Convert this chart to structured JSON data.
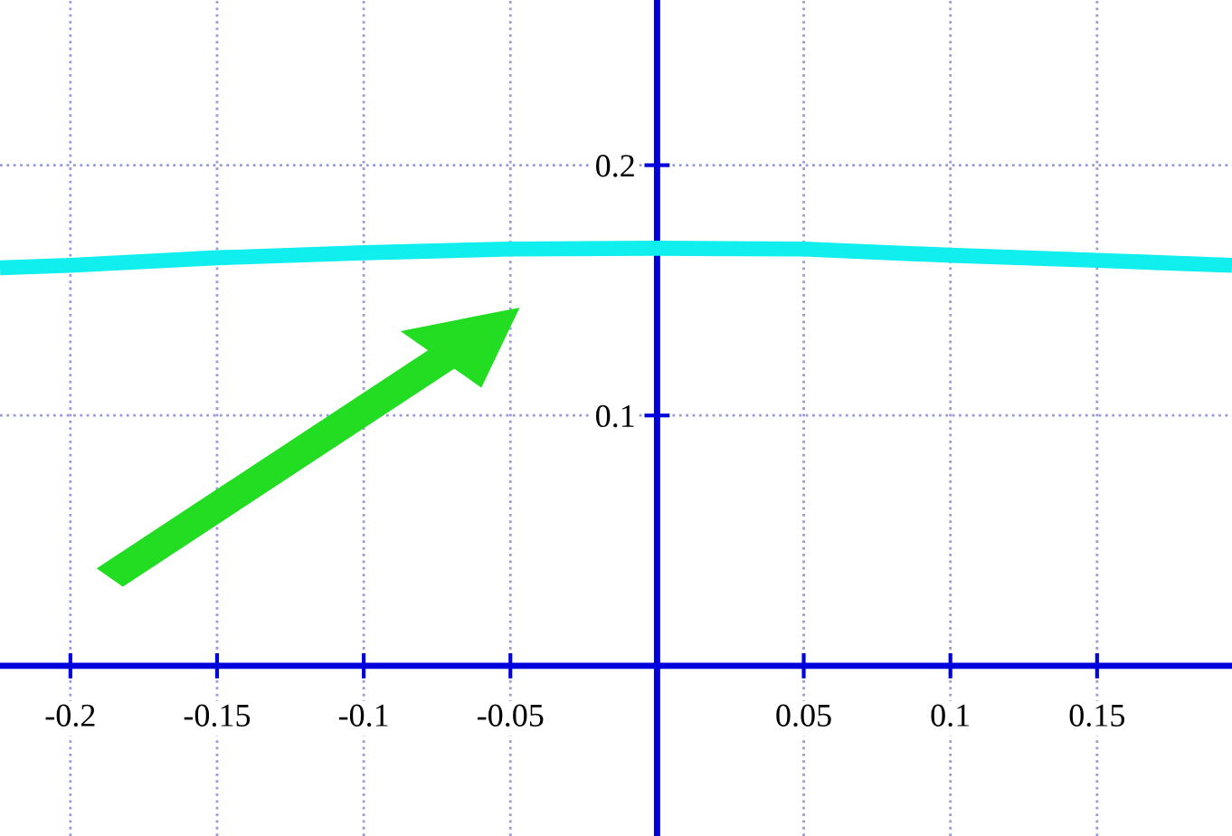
{
  "chart_data": {
    "type": "line",
    "x": [
      -0.224,
      -0.2,
      -0.15,
      -0.1,
      -0.05,
      0,
      0.05,
      0.1,
      0.15,
      0.196
    ],
    "series": [
      {
        "color": "#11eeee",
        "values": [
          0.159,
          0.16,
          0.163,
          0.165,
          0.1665,
          0.1668,
          0.1665,
          0.164,
          0.162,
          0.16
        ]
      }
    ],
    "xlim": [
      -0.224,
      0.196
    ],
    "ylim": [
      -0.068,
      0.266
    ],
    "xticks": [
      -0.2,
      -0.15,
      -0.1,
      -0.05,
      {
        "value": 0,
        "label": null
      },
      0.05,
      0.1,
      0.15
    ],
    "yticks": [
      {
        "value": 0,
        "label": null
      },
      0.1,
      0.2
    ],
    "grid": true
  }
}
